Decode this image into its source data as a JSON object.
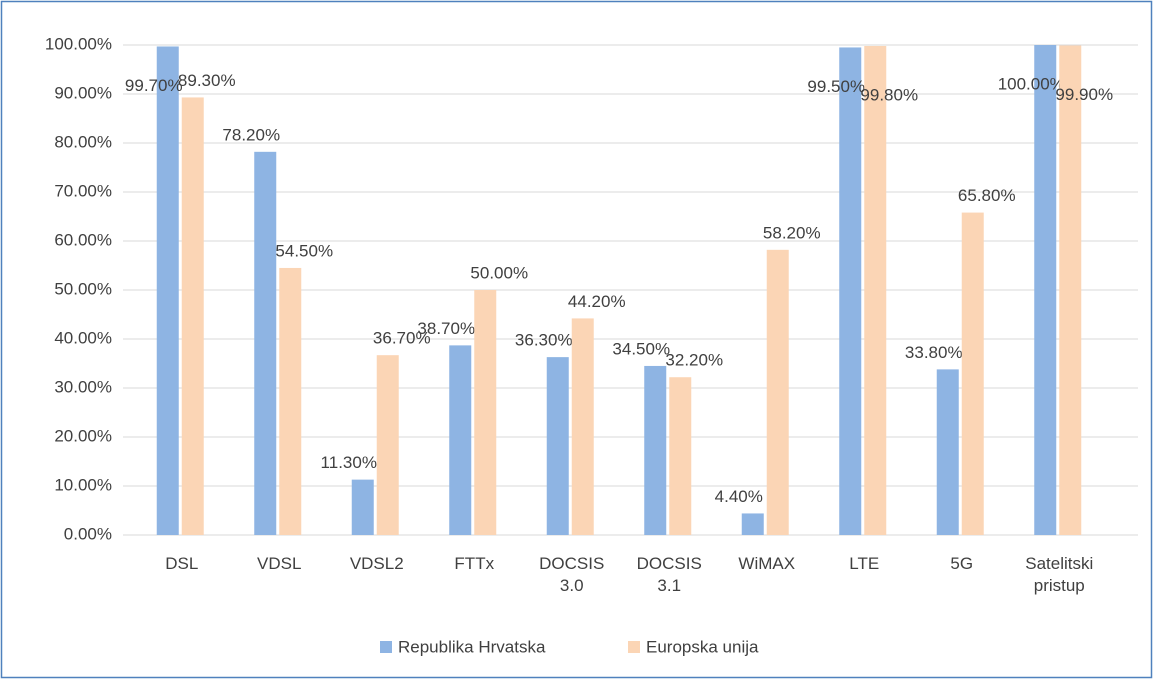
{
  "chart_data": {
    "type": "bar",
    "categories": [
      "DSL",
      "VDSL",
      "VDSL2",
      "FTTx",
      "DOCSIS 3.0",
      "DOCSIS 3.1",
      "WiMAX",
      "LTE",
      "5G",
      "Satelitski pristup"
    ],
    "series": [
      {
        "name": "Republika Hrvatska",
        "color": "#8eb4e3",
        "values": [
          99.7,
          78.2,
          11.3,
          38.7,
          36.3,
          34.5,
          4.4,
          99.5,
          33.8,
          100
        ],
        "value_labels": [
          "99.70%",
          "78.20%",
          "11.30%",
          "38.70%",
          "36.30%",
          "34.50%",
          "4.40%",
          "99.50%",
          "33.80%",
          "100.00%"
        ]
      },
      {
        "name": "Europska unija",
        "color": "#fbd5b5",
        "values": [
          89.3,
          54.5,
          36.7,
          50.0,
          44.2,
          32.2,
          58.2,
          99.8,
          65.8,
          99.9
        ],
        "value_labels": [
          "89.30%",
          "54.50%",
          "36.70%",
          "50.00%",
          "44.20%",
          "32.20%",
          "58.20%",
          "99.80%",
          "65.80%",
          "99.90%"
        ]
      }
    ],
    "ylim": [
      0,
      100
    ],
    "yticks": [
      {
        "value": 0,
        "label": "0.00%"
      },
      {
        "value": 10,
        "label": "10.00%"
      },
      {
        "value": 20,
        "label": "20.00%"
      },
      {
        "value": 30,
        "label": "30.00%"
      },
      {
        "value": 40,
        "label": "40.00%"
      },
      {
        "value": 50,
        "label": "50.00%"
      },
      {
        "value": 60,
        "label": "60.00%"
      },
      {
        "value": 70,
        "label": "70.00%"
      },
      {
        "value": 80,
        "label": "80.00%"
      },
      {
        "value": 90,
        "label": "90.00%"
      },
      {
        "value": 100,
        "label": "100.00%"
      }
    ],
    "grid": true,
    "legend": "bottom"
  }
}
